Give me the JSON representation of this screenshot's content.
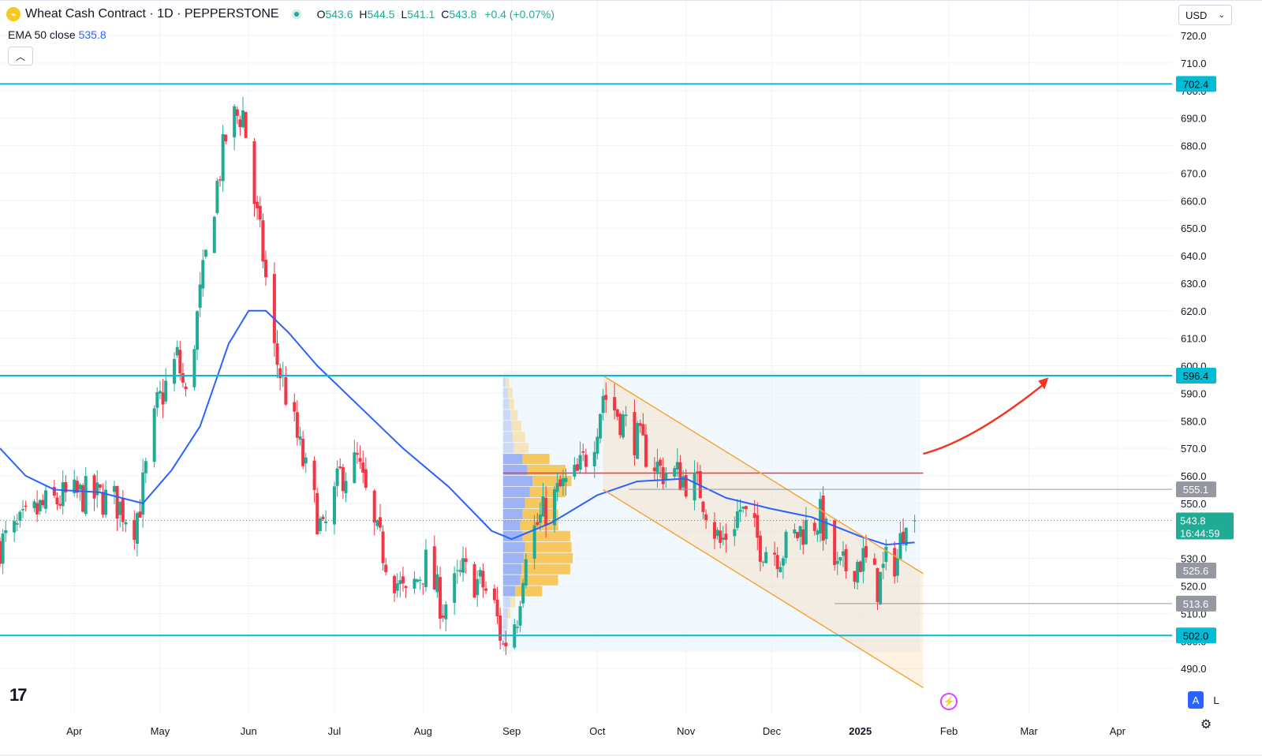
{
  "header": {
    "title": "Wheat Cash Contract · 1D · PEPPERSTONE",
    "open_label": "O",
    "open": "543.6",
    "high_label": "H",
    "high": "544.5",
    "low_label": "L",
    "low": "541.1",
    "close_label": "C",
    "close": "543.8",
    "change": "+0.4 (+0.07%)"
  },
  "indicator": {
    "label": "EMA 50 close",
    "value": "535.8"
  },
  "currency": "USD",
  "colors": {
    "up": "#22ab94",
    "down": "#f23645",
    "ema": "#2962ff",
    "level": "#00bcd4",
    "channel": "#f7a53b",
    "poc": "#f23645",
    "arrow": "#f2361f"
  },
  "chart_data": {
    "type": "candlestick",
    "y_axis": {
      "ylim": [
        482,
        728
      ],
      "ticks": [
        490,
        500,
        510,
        520,
        530,
        540,
        550,
        560,
        570,
        580,
        590,
        600,
        610,
        620,
        630,
        640,
        650,
        660,
        670,
        680,
        690,
        700,
        710,
        720
      ]
    },
    "x_axis": {
      "range": [
        "2024-03-06",
        "2025-04-14"
      ],
      "ticks": [
        {
          "label": "Apr",
          "date": "2024-04-01"
        },
        {
          "label": "May",
          "date": "2024-05-01"
        },
        {
          "label": "Jun",
          "date": "2024-06-01"
        },
        {
          "label": "Jul",
          "date": "2024-07-01"
        },
        {
          "label": "Aug",
          "date": "2024-08-01"
        },
        {
          "label": "Sep",
          "date": "2024-09-01"
        },
        {
          "label": "Oct",
          "date": "2024-10-01"
        },
        {
          "label": "Nov",
          "date": "2024-11-01"
        },
        {
          "label": "Dec",
          "date": "2024-12-01"
        },
        {
          "label": "2025",
          "date": "2025-01-01"
        },
        {
          "label": "Feb",
          "date": "2025-02-01"
        },
        {
          "label": "Mar",
          "date": "2025-03-01"
        },
        {
          "label": "Apr",
          "date": "2025-04-01"
        }
      ]
    },
    "price_path": [
      [
        "2024-03-06",
        535
      ],
      [
        "2024-03-12",
        540
      ],
      [
        "2024-03-20",
        548
      ],
      [
        "2024-03-28",
        552
      ],
      [
        "2024-04-05",
        553
      ],
      [
        "2024-04-15",
        551
      ],
      [
        "2024-04-22",
        543
      ],
      [
        "2024-04-24",
        550
      ],
      [
        "2024-04-30",
        585
      ],
      [
        "2024-05-07",
        603
      ],
      [
        "2024-05-10",
        588
      ],
      [
        "2024-05-15",
        625
      ],
      [
        "2024-05-20",
        660
      ],
      [
        "2024-05-24",
        683
      ],
      [
        "2024-05-27",
        690
      ],
      [
        "2024-05-30",
        692
      ],
      [
        "2024-06-03",
        660
      ],
      [
        "2024-06-06",
        640
      ],
      [
        "2024-06-10",
        605
      ],
      [
        "2024-06-14",
        590
      ],
      [
        "2024-06-20",
        565
      ],
      [
        "2024-06-27",
        538
      ],
      [
        "2024-07-03",
        560
      ],
      [
        "2024-07-09",
        565
      ],
      [
        "2024-07-15",
        540
      ],
      [
        "2024-07-19",
        530
      ],
      [
        "2024-07-26",
        515
      ],
      [
        "2024-08-02",
        528
      ],
      [
        "2024-08-08",
        512
      ],
      [
        "2024-08-15",
        525
      ],
      [
        "2024-08-22",
        520
      ],
      [
        "2024-08-26",
        512
      ],
      [
        "2024-08-29",
        498
      ],
      [
        "2024-09-03",
        510
      ],
      [
        "2024-09-06",
        535
      ],
      [
        "2024-09-12",
        546
      ],
      [
        "2024-09-18",
        555
      ],
      [
        "2024-09-24",
        560
      ],
      [
        "2024-09-30",
        575
      ],
      [
        "2024-10-03",
        590
      ],
      [
        "2024-10-10",
        580
      ],
      [
        "2024-10-17",
        570
      ],
      [
        "2024-10-23",
        562
      ],
      [
        "2024-10-30",
        560
      ],
      [
        "2024-11-06",
        555
      ],
      [
        "2024-11-13",
        535
      ],
      [
        "2024-11-20",
        548
      ],
      [
        "2024-11-27",
        535
      ],
      [
        "2024-12-04",
        532
      ],
      [
        "2024-12-11",
        540
      ],
      [
        "2024-12-18",
        545
      ],
      [
        "2024-12-24",
        525
      ],
      [
        "2025-01-02",
        530
      ],
      [
        "2025-01-07",
        520
      ],
      [
        "2025-01-10",
        528
      ],
      [
        "2025-01-14",
        530
      ],
      [
        "2025-01-17",
        548
      ],
      [
        "2025-01-20",
        543.8
      ]
    ],
    "ema": [
      [
        "2024-03-06",
        570
      ],
      [
        "2024-03-15",
        560
      ],
      [
        "2024-03-25",
        555
      ],
      [
        "2024-04-10",
        554
      ],
      [
        "2024-04-25",
        550
      ],
      [
        "2024-05-05",
        562
      ],
      [
        "2024-05-15",
        578
      ],
      [
        "2024-05-25",
        608
      ],
      [
        "2024-06-01",
        620
      ],
      [
        "2024-06-07",
        620
      ],
      [
        "2024-06-15",
        612
      ],
      [
        "2024-06-25",
        600
      ],
      [
        "2024-07-10",
        585
      ],
      [
        "2024-07-25",
        570
      ],
      [
        "2024-08-10",
        556
      ],
      [
        "2024-08-25",
        540
      ],
      [
        "2024-09-01",
        537
      ],
      [
        "2024-09-15",
        543
      ],
      [
        "2024-10-01",
        553
      ],
      [
        "2024-10-15",
        558
      ],
      [
        "2024-11-01",
        559
      ],
      [
        "2024-11-15",
        552
      ],
      [
        "2024-12-01",
        548
      ],
      [
        "2024-12-15",
        545
      ],
      [
        "2025-01-01",
        538
      ],
      [
        "2025-01-10",
        535
      ],
      [
        "2025-01-20",
        535.8
      ]
    ],
    "horizontal_levels": [
      {
        "price": 702.4,
        "label": "702.4"
      },
      {
        "price": 596.4,
        "label": "596.4"
      },
      {
        "price": 502.0,
        "label": "502.0"
      }
    ],
    "price_markers": [
      {
        "price": 555.1,
        "label": "555.1"
      },
      {
        "price": 525.6,
        "label": "525.6"
      },
      {
        "price": 513.6,
        "label": "513.6"
      }
    ],
    "current_price": {
      "price": 543.8,
      "label": "543.8",
      "countdown": "16:44:59"
    },
    "channel": {
      "upper": [
        [
          "2024-10-03",
          596.4
        ],
        [
          "2025-01-23",
          524.5
        ]
      ],
      "lower": [
        [
          "2024-10-03",
          555
        ],
        [
          "2025-01-23",
          483
        ]
      ]
    },
    "volume_profile": {
      "start": "2024-08-29",
      "end": "2025-01-22",
      "price_range": [
        496,
        598
      ],
      "poc_price": 561,
      "value_area_price_range": [
        516,
        566
      ],
      "bins": [
        {
          "price": 594,
          "buy": 2,
          "sell": 3
        },
        {
          "price": 590,
          "buy": 4,
          "sell": 4
        },
        {
          "price": 586,
          "buy": 5,
          "sell": 4
        },
        {
          "price": 582,
          "buy": 6,
          "sell": 6
        },
        {
          "price": 578,
          "buy": 7,
          "sell": 8
        },
        {
          "price": 574,
          "buy": 8,
          "sell": 10
        },
        {
          "price": 570,
          "buy": 9,
          "sell": 12
        },
        {
          "price": 566,
          "buy": 16,
          "sell": 22
        },
        {
          "price": 562,
          "buy": 20,
          "sell": 31
        },
        {
          "price": 558,
          "buy": 24,
          "sell": 32
        },
        {
          "price": 554,
          "buy": 22,
          "sell": 29
        },
        {
          "price": 550,
          "buy": 18,
          "sell": 26
        },
        {
          "price": 546,
          "buy": 16,
          "sell": 29
        },
        {
          "price": 542,
          "buy": 14,
          "sell": 31
        },
        {
          "price": 538,
          "buy": 16,
          "sell": 39
        },
        {
          "price": 534,
          "buy": 18,
          "sell": 38
        },
        {
          "price": 530,
          "buy": 17,
          "sell": 40
        },
        {
          "price": 526,
          "buy": 15,
          "sell": 40
        },
        {
          "price": 522,
          "buy": 14,
          "sell": 31
        },
        {
          "price": 518,
          "buy": 10,
          "sell": 22
        },
        {
          "price": 514,
          "buy": 6,
          "sell": 4
        },
        {
          "price": 510,
          "buy": 4,
          "sell": 2
        },
        {
          "price": 506,
          "buy": 3,
          "sell": 1
        },
        {
          "price": 502,
          "buy": 2,
          "sell": 1
        },
        {
          "price": 498,
          "buy": 1,
          "sell": 1
        }
      ]
    },
    "projection_arrow": [
      [
        "2025-01-23",
        568
      ],
      [
        "2025-02-10",
        573
      ],
      [
        "2025-03-07",
        594
      ]
    ]
  }
}
